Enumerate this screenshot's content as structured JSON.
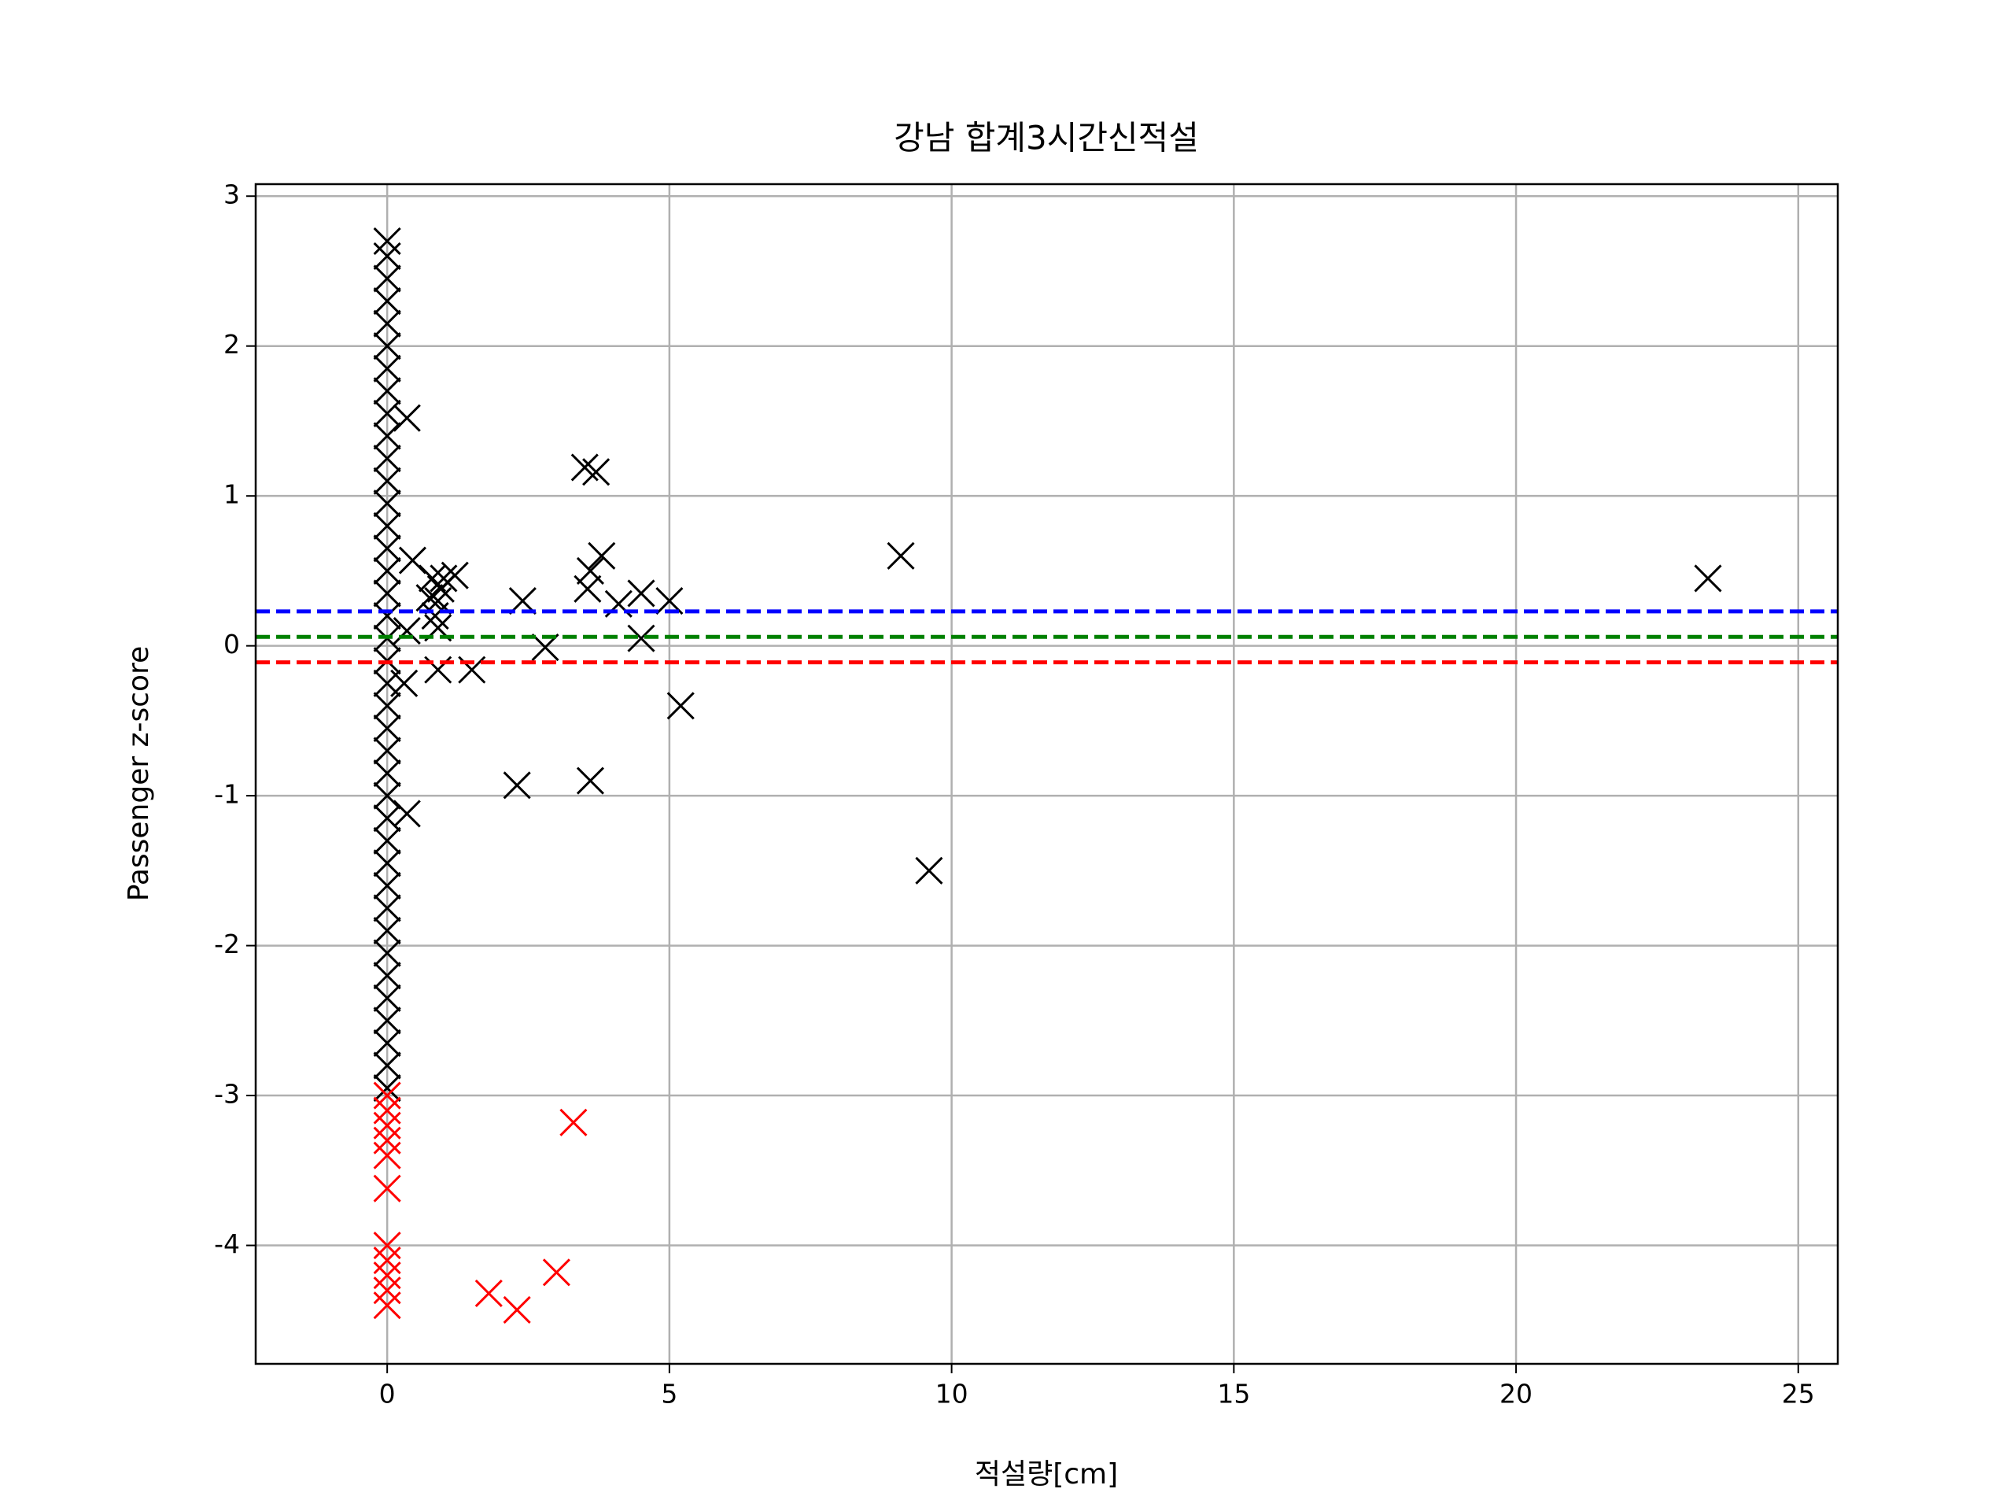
{
  "chart_data": {
    "type": "scatter",
    "title": "강남 합계3시간신적설",
    "xlabel": "적설량[cm]",
    "ylabel": "Passenger z-score",
    "xlim": [
      -2.33,
      25.7
    ],
    "ylim": [
      -4.79,
      3.08
    ],
    "xticks": [
      0,
      5,
      10,
      15,
      20,
      25
    ],
    "yticks": [
      -4,
      -3,
      -2,
      -1,
      0,
      1,
      2,
      3
    ],
    "grid": true,
    "marker": "x",
    "series": [
      {
        "color": "#000000",
        "x": [
          0,
          0,
          0,
          0,
          0,
          0,
          0,
          0,
          0,
          0,
          0,
          0,
          0,
          0,
          0,
          0,
          0,
          0,
          0,
          0,
          0,
          0,
          0,
          0,
          0,
          0,
          0,
          0,
          0,
          0,
          0,
          0,
          0,
          0,
          0,
          0,
          0,
          0,
          0,
          0.35,
          0.45,
          0.35,
          0.3,
          0.35,
          0.8,
          0.9,
          0.85,
          0.95,
          1.0,
          1.2,
          0.9,
          0.9,
          1.5,
          0.75,
          2.4,
          2.3,
          2.8,
          3.5,
          3.7,
          3.6,
          3.55,
          3.8,
          4.1,
          4.5,
          4.5,
          5.0,
          5.2,
          3.6,
          9.1,
          9.6,
          23.4
        ],
        "values": [
          -2.95,
          -2.8,
          -2.65,
          -2.5,
          -2.35,
          -2.2,
          -2.05,
          -1.9,
          -1.75,
          -1.6,
          -1.45,
          -1.3,
          -1.15,
          -1.0,
          -0.85,
          -0.7,
          -0.55,
          -0.4,
          -0.25,
          -0.1,
          0.05,
          0.2,
          0.35,
          0.5,
          0.65,
          0.8,
          0.95,
          1.1,
          1.25,
          1.4,
          1.55,
          1.7,
          1.85,
          2.0,
          2.15,
          2.3,
          2.45,
          2.6,
          2.7,
          1.52,
          0.57,
          0.1,
          -0.25,
          -1.12,
          0.45,
          0.3,
          0.2,
          0.38,
          0.45,
          0.47,
          0.12,
          -0.16,
          -0.16,
          0.32,
          0.3,
          -0.93,
          -0.01,
          1.19,
          1.16,
          0.5,
          0.38,
          0.6,
          0.28,
          0.35,
          0.05,
          0.3,
          -0.4,
          -0.9,
          0.6,
          -1.5,
          0.45
        ]
      },
      {
        "color": "#ff0000",
        "x": [
          0,
          0,
          0,
          0,
          0,
          0,
          0,
          0,
          0,
          0,
          0,
          1.8,
          2.3,
          3.0,
          3.3
        ],
        "values": [
          -3.0,
          -3.1,
          -3.2,
          -3.3,
          -3.4,
          -3.62,
          -4.0,
          -4.1,
          -4.2,
          -4.3,
          -4.4,
          -4.32,
          -4.43,
          -4.18,
          -3.18
        ]
      }
    ],
    "hlines": [
      {
        "value": 0.23,
        "color": "#0000ff"
      },
      {
        "value": 0.06,
        "color": "#008000"
      },
      {
        "value": -0.11,
        "color": "#ff0000"
      }
    ]
  }
}
